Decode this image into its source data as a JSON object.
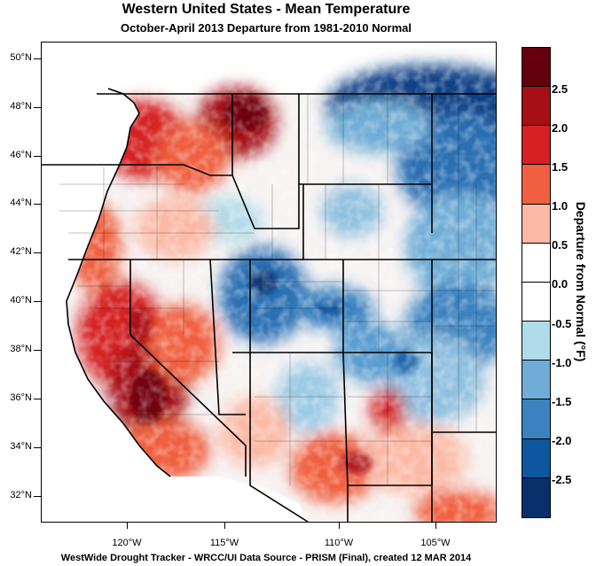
{
  "title": "Western United States - Mean Temperature",
  "subtitle": "October-April 2013  Departure from 1981-2010 Normal",
  "footer": "WestWide Drought Tracker - WRCC/UI  Data Source - PRISM (Final), created 12 MAR 2014",
  "lat_labels": [
    "50°N",
    "48°N",
    "46°N",
    "44°N",
    "42°N",
    "40°N",
    "38°N",
    "36°N",
    "34°N",
    "32°N"
  ],
  "lon_labels": [
    "120°W",
    "115°W",
    "110°W",
    "105°W"
  ],
  "colorbar": {
    "title": "Departure from Normal (°F)",
    "labels": [
      "2.5",
      "2.0",
      "1.5",
      "1.0",
      "0.5",
      "0.0",
      "-0.5",
      "-1.0",
      "-1.5",
      "-2.0",
      "-2.5"
    ],
    "colors": [
      "#67000d",
      "#a50f15",
      "#d62023",
      "#f06040",
      "#fcb9a5",
      "#ffffff",
      "#ffffff",
      "#b0dbe8",
      "#6fadd6",
      "#3a82c0",
      "#0d56a0",
      "#08306b"
    ]
  }
}
